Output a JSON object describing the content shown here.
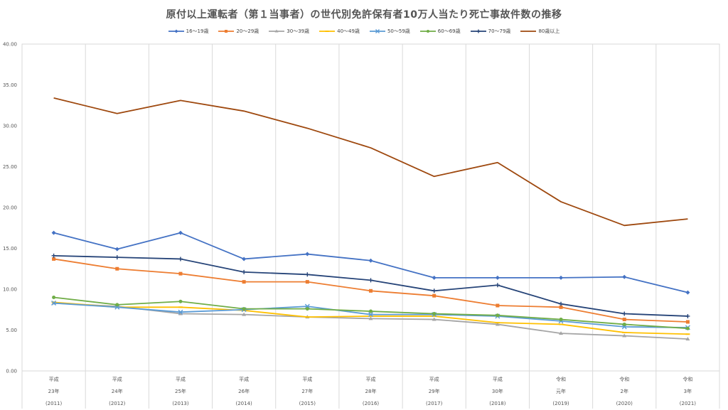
{
  "chart_data": {
    "type": "line",
    "title": "原付以上運転者（第１当事者）の世代別免許保有者10万人当たり死亡事故件数の推移",
    "xlabel": "",
    "ylabel": "",
    "ylim": [
      0,
      40
    ],
    "yticks": [
      "0.00",
      "5.00",
      "10.00",
      "15.00",
      "20.00",
      "25.00",
      "30.00",
      "35.00",
      "40.00"
    ],
    "grid": "vertical",
    "legend_position": "top",
    "categories": [
      {
        "era": "平成",
        "year": "23年",
        "west": "(2011)"
      },
      {
        "era": "平成",
        "year": "24年",
        "west": "(2012)"
      },
      {
        "era": "平成",
        "year": "25年",
        "west": "(2013)"
      },
      {
        "era": "平成",
        "year": "26年",
        "west": "(2014)"
      },
      {
        "era": "平成",
        "year": "27年",
        "west": "(2015)"
      },
      {
        "era": "平成",
        "year": "28年",
        "west": "(2016)"
      },
      {
        "era": "平成",
        "year": "29年",
        "west": "(2017)"
      },
      {
        "era": "平成",
        "year": "30年",
        "west": "(2018)"
      },
      {
        "era": "令和",
        "year": "元年",
        "west": "(2019)"
      },
      {
        "era": "令和",
        "year": "2年",
        "west": "(2020)"
      },
      {
        "era": "令和",
        "year": "3年",
        "west": "(2021)"
      }
    ],
    "series": [
      {
        "name": "16〜19歳",
        "color": "#4472C4",
        "marker": "diamond",
        "values": [
          16.9,
          14.9,
          16.9,
          13.7,
          14.3,
          13.5,
          11.4,
          11.4,
          11.4,
          11.5,
          9.6
        ]
      },
      {
        "name": "20〜29歳",
        "color": "#ED7D31",
        "marker": "square",
        "values": [
          13.7,
          12.5,
          11.9,
          10.9,
          10.9,
          9.8,
          9.2,
          8.0,
          7.8,
          6.3,
          6.0
        ]
      },
      {
        "name": "30〜39歳",
        "color": "#A5A5A5",
        "marker": "triangle",
        "values": [
          8.3,
          7.9,
          7.0,
          6.9,
          6.6,
          6.4,
          6.3,
          5.7,
          4.6,
          4.3,
          3.9
        ]
      },
      {
        "name": "40〜49歳",
        "color": "#FFC000",
        "marker": "dash",
        "values": [
          8.4,
          7.8,
          7.8,
          7.4,
          6.6,
          6.7,
          6.7,
          5.9,
          5.7,
          4.7,
          4.5
        ]
      },
      {
        "name": "50〜59歳",
        "color": "#5B9BD5",
        "marker": "x",
        "values": [
          8.3,
          7.8,
          7.2,
          7.5,
          7.9,
          6.9,
          6.9,
          6.7,
          6.1,
          5.4,
          5.3
        ]
      },
      {
        "name": "60〜69歳",
        "color": "#70AD47",
        "marker": "circle",
        "values": [
          9.0,
          8.1,
          8.5,
          7.6,
          7.6,
          7.3,
          7.0,
          6.8,
          6.3,
          5.7,
          5.2
        ]
      },
      {
        "name": "70〜79歳",
        "color": "#264478",
        "marker": "plus",
        "values": [
          14.1,
          13.9,
          13.7,
          12.1,
          11.8,
          11.1,
          9.8,
          10.5,
          8.2,
          7.0,
          6.7
        ]
      },
      {
        "name": "80歳以上",
        "color": "#9E480E",
        "marker": "none",
        "values": [
          33.4,
          31.5,
          33.1,
          31.8,
          29.7,
          27.3,
          23.8,
          25.5,
          20.7,
          17.8,
          18.6
        ]
      }
    ]
  }
}
